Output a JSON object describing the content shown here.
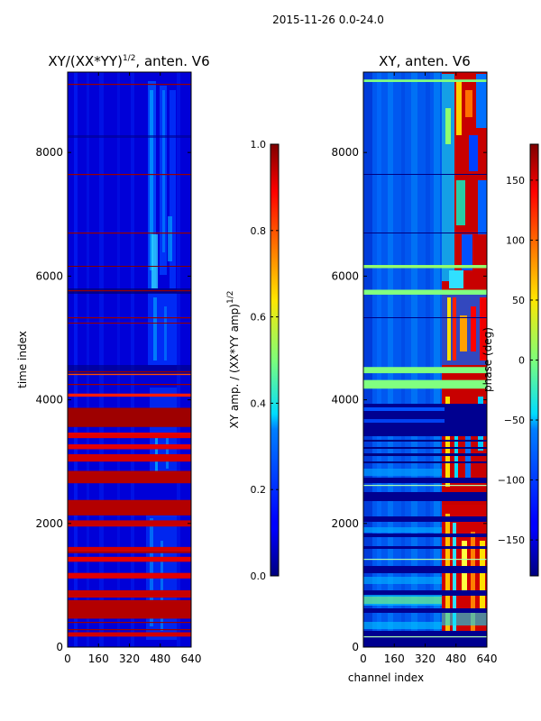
{
  "figure": {
    "suptitle": "2015-11-26 0.0-24.0"
  },
  "chart_data": [
    {
      "type": "heatmap",
      "title_main": "XY/(XX*YY)",
      "title_sup": "1/2",
      "title_tail": ", anten. V6",
      "xlabel": "",
      "ylabel": "time index",
      "xlim": [
        0,
        640
      ],
      "ylim": [
        0,
        9300
      ],
      "xticks": [
        0,
        160,
        320,
        480,
        640
      ],
      "yticks": [
        0,
        2000,
        4000,
        6000,
        8000
      ],
      "colorbar": {
        "label_main": "XY amp. / (XX*YY amp)",
        "label_sup": "1/2",
        "range": [
          0.0,
          1.0
        ],
        "ticks": [
          0.0,
          0.2,
          0.4,
          0.6,
          0.8,
          1.0
        ],
        "colormap": "jet"
      },
      "bands": [
        {
          "y0": 170,
          "y1": 240,
          "value": 0.92
        },
        {
          "y0": 460,
          "y1": 760,
          "value": 0.95
        },
        {
          "y0": 800,
          "y1": 920,
          "value": 0.93
        },
        {
          "y0": 1110,
          "y1": 1200,
          "value": 0.9
        },
        {
          "y0": 1380,
          "y1": 1460,
          "value": 0.9
        },
        {
          "y0": 1520,
          "y1": 1620,
          "value": 0.92
        },
        {
          "y0": 1950,
          "y1": 2050,
          "value": 0.93
        },
        {
          "y0": 2130,
          "y1": 2380,
          "value": 0.95
        },
        {
          "y0": 2650,
          "y1": 2850,
          "value": 0.95
        },
        {
          "y0": 3000,
          "y1": 3120,
          "value": 0.92
        },
        {
          "y0": 3200,
          "y1": 3280,
          "value": 0.9
        },
        {
          "y0": 3380,
          "y1": 3470,
          "value": 0.9
        },
        {
          "y0": 3560,
          "y1": 3870,
          "value": 0.97
        },
        {
          "y0": 4050,
          "y1": 4100,
          "value": 0.85
        },
        {
          "y0": 4400,
          "y1": 4420,
          "value": 0.8
        }
      ]
    },
    {
      "type": "heatmap",
      "title_main": "XY, anten. V6",
      "xlabel": "channel index",
      "ylabel": "",
      "xlim": [
        0,
        640
      ],
      "ylim": [
        0,
        9300
      ],
      "xticks": [
        0,
        160,
        320,
        480,
        640
      ],
      "yticks": [
        0,
        2000,
        4000,
        6000,
        8000
      ],
      "colorbar": {
        "label": "phase (deg)",
        "range": [
          -180,
          180
        ],
        "ticks": [
          -150,
          -100,
          -50,
          0,
          50,
          100,
          150
        ],
        "colormap": "jet"
      },
      "bands": [
        {
          "y0": 4180,
          "y1": 4320,
          "value": 0.5
        },
        {
          "y0": 4430,
          "y1": 4530,
          "value": 0.5
        },
        {
          "y0": 5700,
          "y1": 5780,
          "value": 0.5
        },
        {
          "y0": 6130,
          "y1": 6180,
          "value": 0.52
        },
        {
          "y0": 9140,
          "y1": 9180,
          "value": 0.5
        }
      ]
    }
  ]
}
